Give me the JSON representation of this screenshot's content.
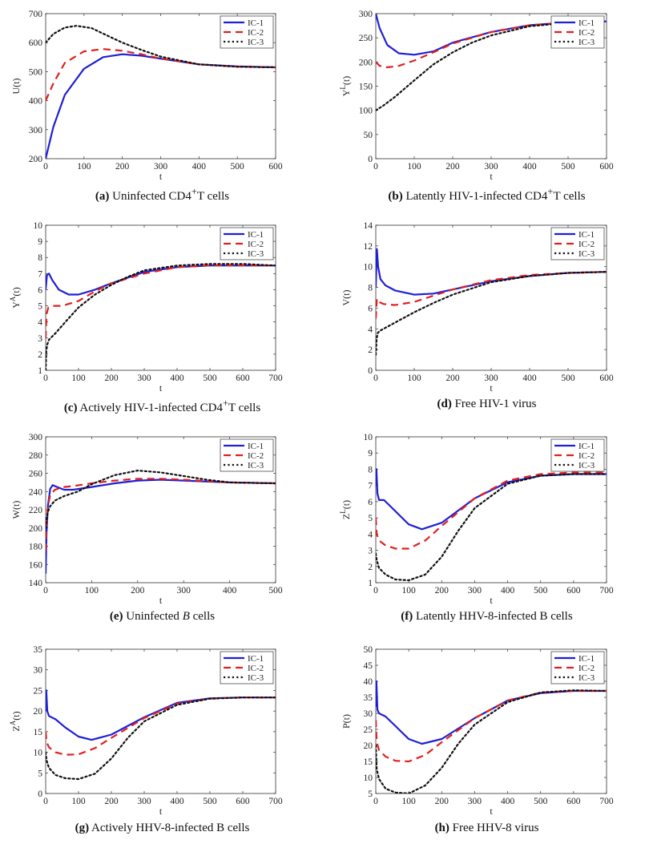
{
  "figure": {
    "legend_labels": [
      "IC-1",
      "IC-2",
      "IC-3"
    ],
    "line_styles": [
      {
        "color": "#1f1fd6",
        "dash": "solid"
      },
      {
        "color": "#e02020",
        "dash": "dashed"
      },
      {
        "color": "#111111",
        "dash": "dotted"
      }
    ]
  },
  "chart_data": [
    {
      "id": "a",
      "type": "line",
      "caption": {
        "tag": "(a)",
        "pre": "Uninfected CD4",
        "sup": "+",
        "post": "T cells",
        "ital": ""
      },
      "ylabel": {
        "base": "U(t)",
        "sup": ""
      },
      "xlabel": "t",
      "xlim": [
        0,
        600
      ],
      "ylim": [
        200,
        700
      ],
      "xticks": [
        0,
        100,
        200,
        300,
        400,
        500,
        600
      ],
      "yticks": [
        200,
        300,
        400,
        500,
        600,
        700
      ],
      "series": [
        {
          "name": "IC-1",
          "x": [
            0,
            20,
            50,
            100,
            150,
            200,
            250,
            300,
            400,
            500,
            600
          ],
          "y": [
            200,
            310,
            420,
            510,
            550,
            560,
            555,
            545,
            525,
            518,
            515
          ]
        },
        {
          "name": "IC-2",
          "x": [
            0,
            20,
            50,
            100,
            150,
            200,
            250,
            300,
            400,
            500,
            600
          ],
          "y": [
            400,
            460,
            530,
            570,
            578,
            572,
            560,
            545,
            525,
            517,
            515
          ]
        },
        {
          "name": "IC-3",
          "x": [
            0,
            20,
            50,
            80,
            120,
            160,
            200,
            250,
            300,
            400,
            500,
            600
          ],
          "y": [
            600,
            630,
            652,
            658,
            650,
            625,
            600,
            575,
            552,
            525,
            517,
            515
          ]
        }
      ]
    },
    {
      "id": "b",
      "type": "line",
      "caption": {
        "tag": "(b)",
        "pre": "Latently HIV-1-infected CD4",
        "sup": "+",
        "post": "T cells",
        "ital": ""
      },
      "ylabel": {
        "base": "Y",
        "sup": "L",
        "post": "(t)"
      },
      "xlabel": "t",
      "xlim": [
        0,
        600
      ],
      "ylim": [
        0,
        300
      ],
      "xticks": [
        0,
        100,
        200,
        300,
        400,
        500,
        600
      ],
      "yticks": [
        0,
        50,
        100,
        150,
        200,
        250,
        300
      ],
      "series": [
        {
          "name": "IC-1",
          "x": [
            0,
            10,
            30,
            60,
            100,
            150,
            200,
            300,
            400,
            500,
            600
          ],
          "y": [
            300,
            270,
            235,
            218,
            215,
            222,
            240,
            262,
            276,
            282,
            284
          ]
        },
        {
          "name": "IC-2",
          "x": [
            0,
            10,
            30,
            60,
            100,
            150,
            200,
            300,
            400,
            500,
            600
          ],
          "y": [
            200,
            192,
            189,
            192,
            203,
            220,
            238,
            262,
            276,
            282,
            284
          ]
        },
        {
          "name": "IC-3",
          "x": [
            0,
            20,
            50,
            100,
            150,
            200,
            250,
            300,
            400,
            500,
            600
          ],
          "y": [
            100,
            110,
            128,
            162,
            195,
            220,
            240,
            255,
            274,
            281,
            284
          ]
        }
      ]
    },
    {
      "id": "c",
      "type": "line",
      "caption": {
        "tag": "(c)",
        "pre": "Actively HIV-1-infected CD4",
        "sup": "+",
        "post": "T cells",
        "ital": ""
      },
      "ylabel": {
        "base": "Y",
        "sup": "A",
        "post": "(t)"
      },
      "xlabel": "t",
      "xlim": [
        0,
        700
      ],
      "ylim": [
        1,
        10
      ],
      "xticks": [
        0,
        100,
        200,
        300,
        400,
        500,
        600,
        700
      ],
      "yticks": [
        1,
        2,
        3,
        4,
        5,
        6,
        7,
        8,
        9,
        10
      ],
      "series": [
        {
          "name": "IC-1",
          "x": [
            0,
            4,
            10,
            20,
            40,
            70,
            100,
            150,
            200,
            300,
            400,
            500,
            600,
            700
          ],
          "y": [
            6.0,
            6.9,
            7.0,
            6.6,
            6.0,
            5.7,
            5.7,
            6.0,
            6.4,
            7.1,
            7.4,
            7.5,
            7.5,
            7.5
          ]
        },
        {
          "name": "IC-2",
          "x": [
            0,
            3,
            8,
            20,
            50,
            100,
            150,
            200,
            300,
            400,
            500,
            600,
            700
          ],
          "y": [
            3.0,
            4.5,
            4.9,
            5.0,
            5.0,
            5.3,
            5.9,
            6.4,
            7.0,
            7.4,
            7.5,
            7.5,
            7.5
          ]
        },
        {
          "name": "IC-3",
          "x": [
            0,
            2,
            5,
            10,
            30,
            60,
            100,
            150,
            200,
            250,
            300,
            400,
            500,
            600,
            700
          ],
          "y": [
            1.0,
            2.2,
            2.6,
            2.9,
            3.3,
            4.0,
            4.9,
            5.7,
            6.3,
            6.8,
            7.2,
            7.5,
            7.6,
            7.6,
            7.5
          ]
        }
      ]
    },
    {
      "id": "d",
      "type": "line",
      "caption": {
        "tag": "(d)",
        "pre": "Free HIV-1 virus",
        "sup": "",
        "post": "",
        "ital": ""
      },
      "ylabel": {
        "base": "V(t)",
        "sup": ""
      },
      "xlabel": "t",
      "xlim": [
        0,
        600
      ],
      "ylim": [
        0,
        14
      ],
      "xticks": [
        0,
        100,
        200,
        300,
        400,
        500,
        600
      ],
      "yticks": [
        0,
        2,
        4,
        6,
        8,
        10,
        12,
        14
      ],
      "series": [
        {
          "name": "IC-1",
          "x": [
            0,
            3,
            6,
            12,
            25,
            50,
            100,
            150,
            200,
            300,
            400,
            500,
            600
          ],
          "y": [
            8.0,
            11.7,
            10.0,
            8.8,
            8.2,
            7.7,
            7.3,
            7.4,
            7.8,
            8.6,
            9.1,
            9.4,
            9.5
          ]
        },
        {
          "name": "IC-2",
          "x": [
            0,
            3,
            8,
            20,
            50,
            100,
            150,
            200,
            300,
            400,
            500,
            600
          ],
          "y": [
            5.0,
            6.9,
            6.6,
            6.4,
            6.3,
            6.6,
            7.2,
            7.8,
            8.7,
            9.2,
            9.4,
            9.5
          ]
        },
        {
          "name": "IC-3",
          "x": [
            0,
            2,
            5,
            10,
            30,
            60,
            100,
            150,
            200,
            300,
            400,
            500,
            600
          ],
          "y": [
            1.5,
            3.0,
            3.6,
            3.8,
            4.2,
            4.8,
            5.6,
            6.5,
            7.3,
            8.5,
            9.1,
            9.4,
            9.5
          ]
        }
      ]
    },
    {
      "id": "e",
      "type": "line",
      "caption": {
        "tag": "(e)",
        "pre": "Uninfected ",
        "sup": "",
        "post": " cells",
        "ital": "B"
      },
      "ylabel": {
        "base": "W(t)",
        "sup": ""
      },
      "xlabel": "t",
      "xlim": [
        0,
        500
      ],
      "ylim": [
        140,
        300
      ],
      "xticks": [
        0,
        100,
        200,
        300,
        400,
        500
      ],
      "yticks": [
        140,
        160,
        180,
        200,
        220,
        240,
        260,
        280,
        300
      ],
      "series": [
        {
          "name": "IC-1",
          "x": [
            0,
            2,
            5,
            10,
            15,
            25,
            40,
            60,
            100,
            150,
            200,
            250,
            300,
            400,
            500
          ],
          "y": [
            150,
            195,
            225,
            243,
            247,
            245,
            242,
            242,
            245,
            249,
            252,
            253,
            252,
            250,
            249
          ]
        },
        {
          "name": "IC-2",
          "x": [
            0,
            2,
            5,
            10,
            20,
            40,
            60,
            100,
            150,
            200,
            250,
            300,
            400,
            500
          ],
          "y": [
            175,
            205,
            225,
            236,
            242,
            245,
            246,
            249,
            252,
            254,
            254,
            253,
            250,
            249
          ]
        },
        {
          "name": "IC-3",
          "x": [
            0,
            2,
            5,
            10,
            20,
            40,
            70,
            100,
            150,
            200,
            250,
            300,
            350,
            400,
            500
          ],
          "y": [
            200,
            210,
            218,
            224,
            230,
            235,
            240,
            248,
            258,
            263,
            261,
            257,
            253,
            250,
            249
          ]
        }
      ]
    },
    {
      "id": "f",
      "type": "line",
      "caption": {
        "tag": "(f)",
        "pre": "Latently HHV-8-infected B cells",
        "sup": "",
        "post": "",
        "ital": ""
      },
      "ylabel": {
        "base": "Z",
        "sup": "L",
        "post": "(t)"
      },
      "xlabel": "t",
      "xlim": [
        0,
        700
      ],
      "ylim": [
        1,
        10
      ],
      "xticks": [
        0,
        100,
        200,
        300,
        400,
        500,
        600,
        700
      ],
      "yticks": [
        1,
        2,
        3,
        4,
        5,
        6,
        7,
        8,
        9,
        10
      ],
      "series": [
        {
          "name": "IC-1",
          "x": [
            0,
            2,
            5,
            10,
            25,
            50,
            100,
            140,
            200,
            300,
            400,
            500,
            600,
            700
          ],
          "y": [
            7.0,
            8.0,
            6.5,
            6.1,
            6.1,
            5.6,
            4.6,
            4.3,
            4.7,
            6.2,
            7.2,
            7.6,
            7.7,
            7.7
          ]
        },
        {
          "name": "IC-2",
          "x": [
            0,
            3,
            10,
            30,
            60,
            100,
            150,
            200,
            300,
            400,
            500,
            600,
            700
          ],
          "y": [
            5.0,
            4.0,
            3.6,
            3.3,
            3.1,
            3.1,
            3.6,
            4.5,
            6.2,
            7.3,
            7.7,
            7.8,
            7.8
          ]
        },
        {
          "name": "IC-3",
          "x": [
            0,
            3,
            10,
            30,
            60,
            100,
            150,
            200,
            250,
            300,
            400,
            500,
            600,
            700
          ],
          "y": [
            2.8,
            2.4,
            1.9,
            1.5,
            1.2,
            1.15,
            1.5,
            2.6,
            4.2,
            5.6,
            7.1,
            7.6,
            7.7,
            7.7
          ]
        }
      ]
    },
    {
      "id": "g",
      "type": "line",
      "caption": {
        "tag": "(g)",
        "pre": "Actively HHV-8-infected B cells",
        "sup": "",
        "post": "",
        "ital": ""
      },
      "ylabel": {
        "base": "Z",
        "sup": "A",
        "post": "(t)"
      },
      "xlabel": "t",
      "xlim": [
        0,
        700
      ],
      "ylim": [
        0,
        35
      ],
      "xticks": [
        0,
        100,
        200,
        300,
        400,
        500,
        600,
        700
      ],
      "yticks": [
        0,
        5,
        10,
        15,
        20,
        25,
        30,
        35
      ],
      "series": [
        {
          "name": "IC-1",
          "x": [
            0,
            2,
            5,
            10,
            30,
            60,
            100,
            140,
            200,
            300,
            400,
            500,
            600,
            700
          ],
          "y": [
            20,
            25,
            20,
            18.8,
            18.0,
            16.0,
            13.8,
            13.0,
            14.3,
            18.5,
            22.0,
            23.1,
            23.3,
            23.3
          ]
        },
        {
          "name": "IC-2",
          "x": [
            0,
            3,
            10,
            30,
            60,
            100,
            150,
            200,
            300,
            400,
            500,
            600,
            700
          ],
          "y": [
            15,
            12.5,
            11.2,
            10.0,
            9.4,
            9.5,
            11.0,
            13.5,
            18.3,
            21.8,
            23.0,
            23.3,
            23.3
          ]
        },
        {
          "name": "IC-3",
          "x": [
            0,
            3,
            10,
            30,
            60,
            100,
            150,
            200,
            250,
            300,
            400,
            500,
            600,
            700
          ],
          "y": [
            10,
            8.0,
            6.2,
            4.5,
            3.7,
            3.5,
            4.8,
            8.5,
            13.5,
            17.5,
            21.5,
            23.0,
            23.3,
            23.3
          ]
        }
      ]
    },
    {
      "id": "h",
      "type": "line",
      "caption": {
        "tag": "(h)",
        "pre": "Free HHV-8 virus",
        "sup": "",
        "post": "",
        "ital": ""
      },
      "ylabel": {
        "base": "P(t)",
        "sup": ""
      },
      "xlabel": "t",
      "xlim": [
        0,
        700
      ],
      "ylim": [
        5,
        50
      ],
      "xticks": [
        0,
        100,
        200,
        300,
        400,
        500,
        600,
        700
      ],
      "yticks": [
        5,
        10,
        15,
        20,
        25,
        30,
        35,
        40,
        45,
        50
      ],
      "series": [
        {
          "name": "IC-1",
          "x": [
            0,
            2,
            5,
            10,
            30,
            60,
            100,
            140,
            200,
            300,
            400,
            500,
            600,
            700
          ],
          "y": [
            32,
            40,
            31,
            30,
            29,
            26,
            22,
            20.5,
            22,
            28.5,
            34,
            36.3,
            37,
            37
          ]
        },
        {
          "name": "IC-2",
          "x": [
            0,
            3,
            10,
            30,
            60,
            100,
            150,
            200,
            300,
            400,
            500,
            600,
            700
          ],
          "y": [
            28,
            21,
            18.5,
            16.5,
            15.2,
            15.0,
            17.0,
            21.0,
            28.5,
            34,
            36.5,
            37,
            37
          ]
        },
        {
          "name": "IC-3",
          "x": [
            0,
            3,
            10,
            30,
            60,
            100,
            150,
            200,
            250,
            300,
            400,
            500,
            600,
            700
          ],
          "y": [
            20,
            12.5,
            9.5,
            6.5,
            5.3,
            5.0,
            7.5,
            13.0,
            20.5,
            26.5,
            33.5,
            36.5,
            37.2,
            37.0
          ]
        }
      ]
    }
  ]
}
